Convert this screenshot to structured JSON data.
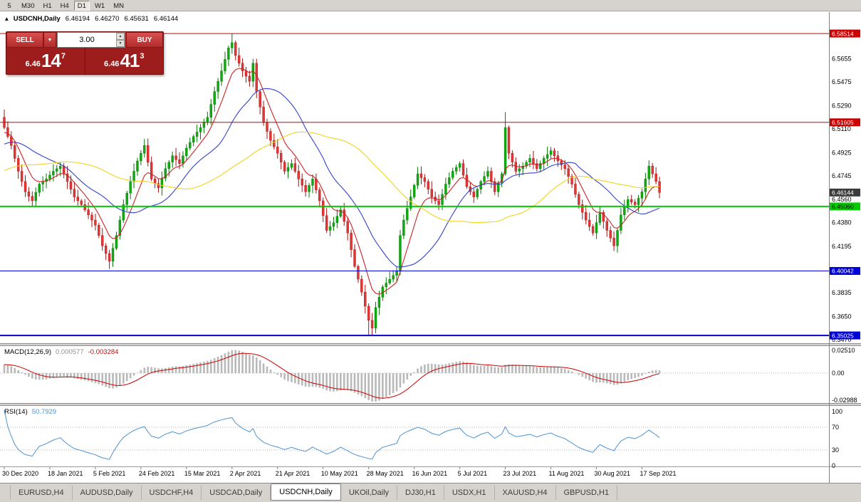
{
  "toolbar": {
    "timeframes": [
      "5",
      "M30",
      "H1",
      "H4",
      "D1",
      "W1",
      "MN"
    ],
    "active": "D1"
  },
  "chart_header": {
    "collapse_icon": "▴",
    "symbol": "USDCNH,Daily",
    "open": "6.46194",
    "high": "6.46270",
    "low": "6.45631",
    "close": "6.46144"
  },
  "trade_panel": {
    "sell_label": "SELL",
    "buy_label": "BUY",
    "dropdown_icon": "▼",
    "spin_up_icon": "▲",
    "spin_down_icon": "▼",
    "volume": "3.00",
    "bid_small": "6.46",
    "bid_big": "14",
    "bid_sup": "7",
    "ask_small": "6.46",
    "ask_big": "41",
    "ask_sup": "3"
  },
  "tabs": {
    "items": [
      "EURUSD,H4",
      "AUDUSD,Daily",
      "USDCHF,H4",
      "USDCAD,Daily",
      "USDCNH,Daily",
      "UKOil,Daily",
      "DJ30,H1",
      "USDX,H1",
      "XAUUSD,H4",
      "GBPUSD,H1"
    ],
    "active": "USDCNH,Daily"
  },
  "chart_data": {
    "type": "candlestick",
    "symbol": "USDCNH",
    "timeframe": "Daily",
    "price_range": {
      "top": 6.6018,
      "bottom": 6.3442
    },
    "first_open": 6.52,
    "closes": [
      6.512,
      6.505,
      6.498,
      6.488,
      6.478,
      6.47,
      6.462,
      6.4585,
      6.455,
      6.4615,
      6.468,
      6.47,
      6.472,
      6.475,
      6.478,
      6.48,
      6.482,
      6.476,
      6.47,
      6.464,
      6.458,
      6.455,
      6.452,
      6.448,
      6.444,
      6.44,
      6.436,
      6.428,
      6.42,
      6.414,
      6.408,
      6.418,
      6.428,
      6.44,
      6.452,
      6.461,
      6.47,
      6.478,
      6.486,
      6.492,
      6.498,
      6.485,
      6.472,
      6.4685,
      6.465,
      6.4725,
      6.48,
      6.485,
      6.49,
      6.487,
      6.484,
      6.49,
      6.496,
      6.5005,
      6.505,
      6.5085,
      6.512,
      6.516,
      6.52,
      6.53,
      6.54,
      6.548,
      6.556,
      6.565,
      6.574,
      6.578,
      6.568,
      6.562,
      6.556,
      6.552,
      6.548,
      6.562,
      6.54,
      6.528,
      6.516,
      6.509,
      6.502,
      6.497,
      6.492,
      6.485,
      6.478,
      6.481,
      6.484,
      6.478,
      6.472,
      6.467,
      6.462,
      6.467,
      6.472,
      6.4635,
      6.455,
      6.4435,
      6.432,
      6.435,
      6.438,
      6.443,
      6.448,
      6.439,
      6.43,
      6.417,
      6.404,
      6.394,
      6.384,
      6.373,
      6.362,
      6.356,
      6.372,
      6.38,
      6.388,
      6.391,
      6.394,
      6.397,
      6.4,
      6.428,
      6.44,
      6.449,
      6.458,
      6.467,
      6.476,
      6.473,
      6.47,
      6.464,
      6.458,
      6.455,
      6.452,
      6.46,
      6.468,
      6.473,
      6.478,
      6.481,
      6.484,
      6.475,
      6.466,
      6.462,
      6.458,
      6.464,
      6.47,
      6.474,
      6.478,
      6.47,
      6.462,
      6.469,
      6.476,
      6.512,
      6.492,
      6.485,
      6.478,
      6.48,
      6.482,
      6.485,
      6.488,
      6.484,
      6.48,
      6.484,
      6.488,
      6.491,
      6.494,
      6.49,
      6.486,
      6.483,
      6.48,
      6.474,
      6.468,
      6.46,
      6.452,
      6.446,
      6.44,
      6.435,
      6.43,
      6.438,
      6.446,
      6.439,
      6.432,
      6.426,
      6.42,
      6.432,
      6.444,
      6.45,
      6.456,
      6.454,
      6.452,
      6.457,
      6.462,
      6.472,
      6.482,
      6.476,
      6.47,
      6.4614
    ],
    "wick_overrides": {
      "0": {
        "h": 6.526
      },
      "30": {
        "l": 6.402
      },
      "65": {
        "h": 6.58514
      },
      "104": {
        "l": 6.3508
      },
      "105": {
        "l": 6.3502
      },
      "143": {
        "h": 6.524
      }
    },
    "ma_seed": {
      "start": 6.442,
      "end": 6.512,
      "count": 50
    },
    "moving_averages": [
      {
        "period": 8,
        "type": "ema",
        "color": "#cc2222"
      },
      {
        "period": 21,
        "type": "sma",
        "color": "#3344cc"
      },
      {
        "period": 50,
        "type": "sma",
        "color": "#f0d41e"
      }
    ],
    "hlines": [
      {
        "price": 6.58514,
        "label": "6.58514",
        "color": "#cc0000",
        "width": 1,
        "text": "#ffffff"
      },
      {
        "price": 6.51605,
        "label": "6.51605",
        "color": "#cc0000",
        "width": 1,
        "text": "#ffffff"
      },
      {
        "price": 6.4506,
        "label": "6.45060",
        "color": "#00cc00",
        "width": 2,
        "text": "#000000"
      },
      {
        "price": 6.40042,
        "label": "6.40042",
        "color": "#0000d8",
        "width": 1,
        "text": "#ffffff"
      },
      {
        "price": 6.35025,
        "label": "6.35025",
        "color": "#0000d8",
        "width": 2,
        "text": "#ffffff"
      }
    ],
    "current_price": {
      "value": 6.46144,
      "label": "6.46144",
      "box_color": "#3a3a3a",
      "text": "#ffffff"
    },
    "y_ticks_main": [
      "6.5655",
      "6.5475",
      "6.5290",
      "6.5110",
      "6.4925",
      "6.4745",
      "6.4560",
      "6.4380",
      "6.4195",
      "6.3835",
      "6.3650",
      "6.3470"
    ],
    "x_labels": [
      {
        "i": 0,
        "t": "30 Dec 2020"
      },
      {
        "i": 13,
        "t": "18 Jan 2021"
      },
      {
        "i": 26,
        "t": "5 Feb 2021"
      },
      {
        "i": 39,
        "t": "24 Feb 2021"
      },
      {
        "i": 52,
        "t": "15 Mar 2021"
      },
      {
        "i": 65,
        "t": "2 Apr 2021"
      },
      {
        "i": 78,
        "t": "21 Apr 2021"
      },
      {
        "i": 91,
        "t": "10 May 2021"
      },
      {
        "i": 104,
        "t": "28 May 2021"
      },
      {
        "i": 117,
        "t": "16 Jun 2021"
      },
      {
        "i": 130,
        "t": "5 Jul 2021"
      },
      {
        "i": 143,
        "t": "23 Jul 2021"
      },
      {
        "i": 156,
        "t": "11 Aug 2021"
      },
      {
        "i": 169,
        "t": "30 Aug 2021"
      },
      {
        "i": 182,
        "t": "17 Sep 2021"
      }
    ],
    "macd": {
      "name": "MACD(12,26,9)",
      "value": "0.000577",
      "signal": "-0.003284",
      "params": [
        12,
        26,
        9
      ],
      "ticks": [
        "0.02510",
        "0.00",
        "-0.02988"
      ],
      "histogram_color": "#b9b9b9",
      "signal_color": "#cc0000"
    },
    "rsi": {
      "name": "RSI(14)",
      "value": "50.7929",
      "period": 14,
      "levels": [
        "100",
        "70",
        "30",
        "0"
      ],
      "line_color": "#4f93cf"
    },
    "candle_up_color": "#0faa0f",
    "candle_down_color": "#e23535"
  }
}
